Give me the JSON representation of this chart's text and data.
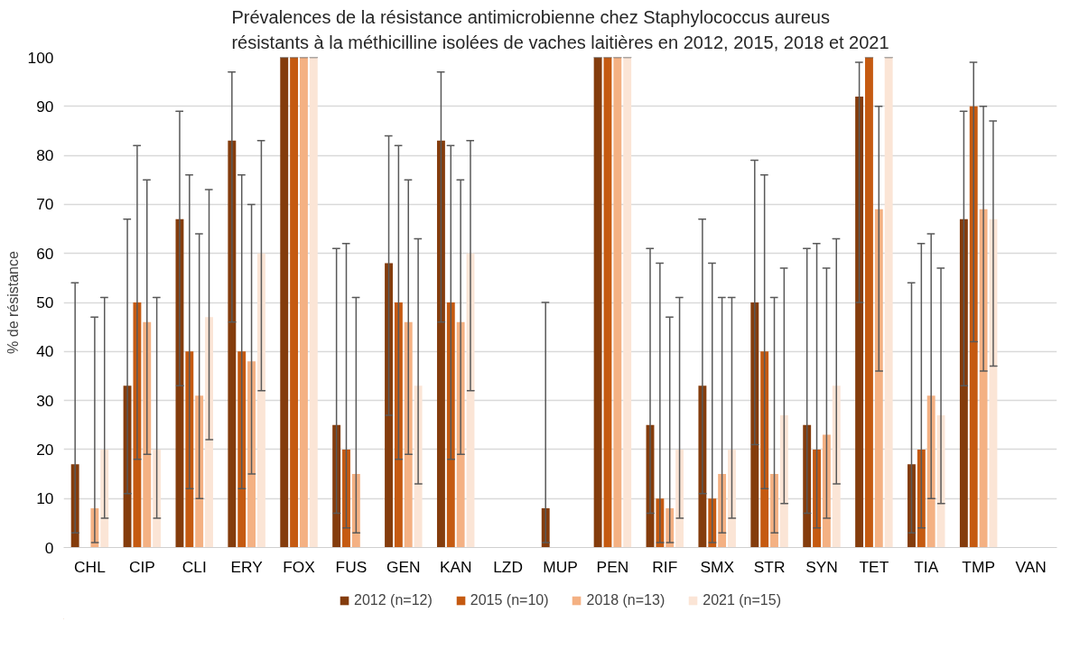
{
  "chart_data": {
    "type": "bar",
    "title": "Prévalences de la résistance antimicrobienne chez Staphylococcus aureus\nrésistants à la méthicilline isolées de vaches laitières en 2012, 2015, 2018 et 2021",
    "ylabel": "% de résistance",
    "categories": [
      "CHL",
      "CIP",
      "CLI",
      "ERY",
      "FOX",
      "FUS",
      "GEN",
      "KAN",
      "LZD",
      "MUP",
      "PEN",
      "RIF",
      "SMX",
      "STR",
      "SYN",
      "TET",
      "TIA",
      "TMP",
      "VAN"
    ],
    "series": [
      {
        "name": "2012 (n=12)",
        "color": "#843c0c",
        "values": [
          17,
          33,
          67,
          83,
          100,
          25,
          58,
          83,
          0,
          8,
          100,
          25,
          33,
          50,
          25,
          92,
          17,
          67,
          0
        ],
        "errors": [
          [
            3,
            54
          ],
          [
            11,
            67
          ],
          [
            33,
            89
          ],
          [
            46,
            97
          ],
          [
            100,
            100
          ],
          [
            7,
            61
          ],
          [
            27,
            84
          ],
          [
            46,
            97
          ],
          null,
          [
            1,
            50
          ],
          [
            100,
            100
          ],
          [
            7,
            61
          ],
          [
            11,
            67
          ],
          [
            21,
            79
          ],
          [
            7,
            61
          ],
          [
            50,
            99
          ],
          [
            3,
            54
          ],
          [
            33,
            89
          ],
          null
        ]
      },
      {
        "name": "2015 (n=10)",
        "color": "#c55a11",
        "values": [
          0,
          50,
          40,
          40,
          100,
          20,
          50,
          50,
          0,
          0,
          100,
          10,
          10,
          40,
          20,
          100,
          20,
          90,
          0
        ],
        "errors": [
          null,
          [
            18,
            82
          ],
          [
            12,
            76
          ],
          [
            12,
            76
          ],
          [
            100,
            100
          ],
          [
            4,
            62
          ],
          [
            18,
            82
          ],
          [
            18,
            82
          ],
          null,
          null,
          [
            100,
            100
          ],
          [
            1,
            58
          ],
          [
            1,
            58
          ],
          [
            12,
            76
          ],
          [
            4,
            62
          ],
          [
            100,
            100
          ],
          [
            4,
            62
          ],
          [
            42,
            99
          ],
          null
        ]
      },
      {
        "name": "2018 (n=13)",
        "color": "#f4b183",
        "values": [
          8,
          46,
          31,
          38,
          100,
          15,
          46,
          46,
          0,
          0,
          100,
          8,
          15,
          15,
          23,
          69,
          31,
          69,
          0
        ],
        "errors": [
          [
            1,
            47
          ],
          [
            19,
            75
          ],
          [
            10,
            64
          ],
          [
            15,
            70
          ],
          [
            100,
            100
          ],
          [
            3,
            51
          ],
          [
            19,
            75
          ],
          [
            19,
            75
          ],
          null,
          null,
          [
            100,
            100
          ],
          [
            1,
            47
          ],
          [
            3,
            51
          ],
          [
            3,
            51
          ],
          [
            6,
            57
          ],
          [
            36,
            90
          ],
          [
            10,
            64
          ],
          [
            36,
            90
          ],
          null
        ]
      },
      {
        "name": "2021 (n=15)",
        "color": "#fbe5d6",
        "values": [
          20,
          20,
          47,
          60,
          100,
          0,
          33,
          60,
          0,
          0,
          100,
          20,
          20,
          27,
          33,
          100,
          27,
          67,
          0
        ],
        "errors": [
          [
            6,
            51
          ],
          [
            6,
            51
          ],
          [
            22,
            73
          ],
          [
            32,
            83
          ],
          [
            100,
            100
          ],
          null,
          [
            13,
            63
          ],
          [
            32,
            83
          ],
          null,
          null,
          [
            100,
            100
          ],
          [
            6,
            51
          ],
          [
            6,
            51
          ],
          [
            9,
            57
          ],
          [
            13,
            63
          ],
          [
            100,
            100
          ],
          [
            9,
            57
          ],
          [
            37,
            87
          ],
          null
        ]
      }
    ],
    "ylim": [
      0,
      100
    ],
    "yticks": [
      0,
      10,
      20,
      30,
      40,
      50,
      60,
      70,
      80,
      90,
      100
    ],
    "grid": "y",
    "legend": "bottom"
  }
}
